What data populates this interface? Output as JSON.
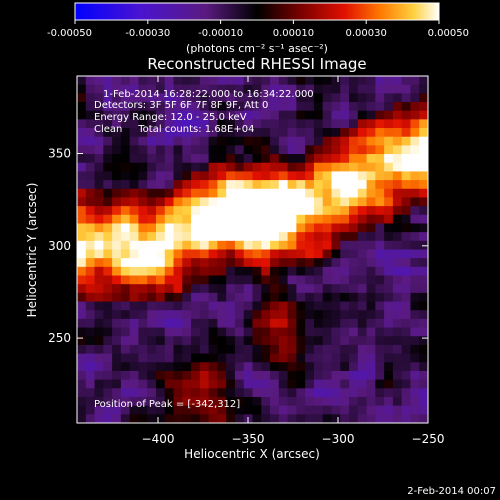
{
  "chart_data": {
    "type": "heatmap",
    "title": "Reconstructed RHESSI Image",
    "colorbar": {
      "ticks": [
        "-0.00050",
        "-0.00030",
        "-0.00010",
        "0.00010",
        "0.00030",
        "0.00050"
      ],
      "range": [
        -0.0005,
        0.0005
      ],
      "units_label": "(photons cm⁻² s⁻¹ asec⁻²)"
    },
    "annotations": [
      "1-Feb-2014 16:28:22.000 to 16:34:22.000",
      "Detectors: 3F 5F 6F 7F 8F 9F, Att 0",
      "Energy Range: 12.0 - 25.0 keV",
      "Clean     Total counts: 1.68E+04"
    ],
    "peak_label": "Position of Peak = [-342,312]",
    "xlabel": "Heliocentric X (arcsec)",
    "ylabel": "Heliocentric Y (arcsec)",
    "xlim": [
      -445,
      -250
    ],
    "ylim": [
      204,
      392
    ],
    "x_ticks": [
      -400,
      -350,
      -300,
      -250
    ],
    "y_ticks": [
      250,
      300,
      350
    ],
    "peak": [
      -342,
      312
    ],
    "colors": {
      "bar_low": "#0000ff",
      "bar_mid": "#000000",
      "bar_high": "#ffffff"
    }
  },
  "footer_timestamp": "2-Feb-2014 00:07"
}
